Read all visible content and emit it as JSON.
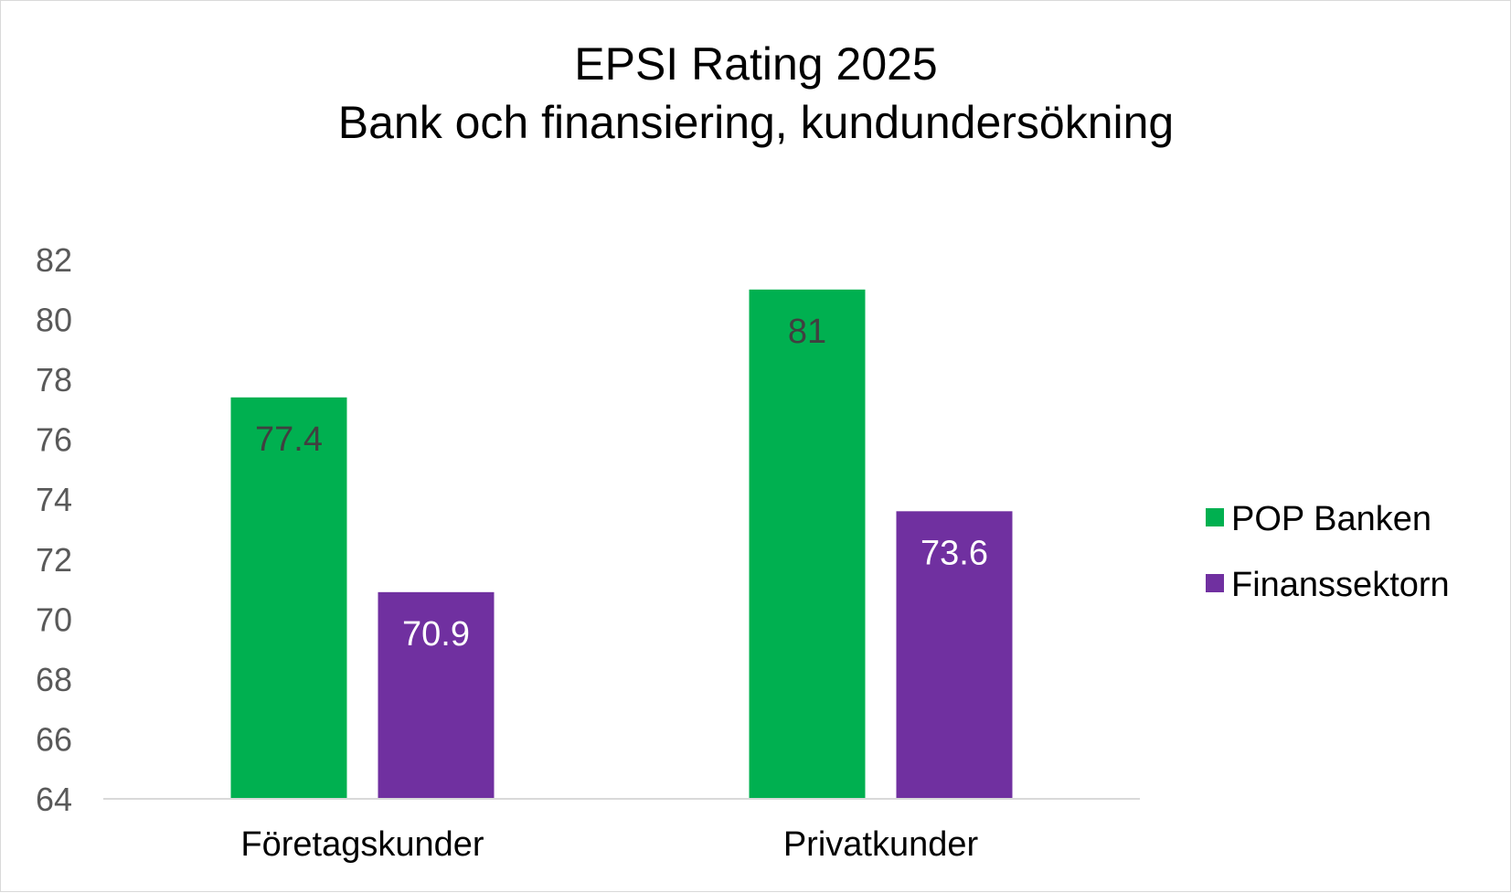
{
  "chart_data": {
    "type": "bar",
    "title": "EPSI Rating 2025",
    "subtitle": "Bank och finansiering, kundundersökning",
    "xlabel": "",
    "ylabel": "",
    "categories": [
      "Företagskunder",
      "Privatkunder"
    ],
    "series": [
      {
        "name": "POP Banken",
        "values": [
          77.4,
          81
        ],
        "color": "#00b050",
        "label_color": "#404040"
      },
      {
        "name": "Finanssektorn",
        "values": [
          70.9,
          73.6
        ],
        "color": "#7030a0",
        "label_color": "#ffffff"
      }
    ],
    "ylim": [
      64,
      82
    ],
    "yticks": [
      "64",
      "66",
      "68",
      "70",
      "72",
      "74",
      "76",
      "78",
      "80",
      "82"
    ],
    "data_labels": [
      [
        "77.4",
        "81"
      ],
      [
        "70.9",
        "73.6"
      ]
    ],
    "grid": false,
    "legend_position": "right"
  }
}
